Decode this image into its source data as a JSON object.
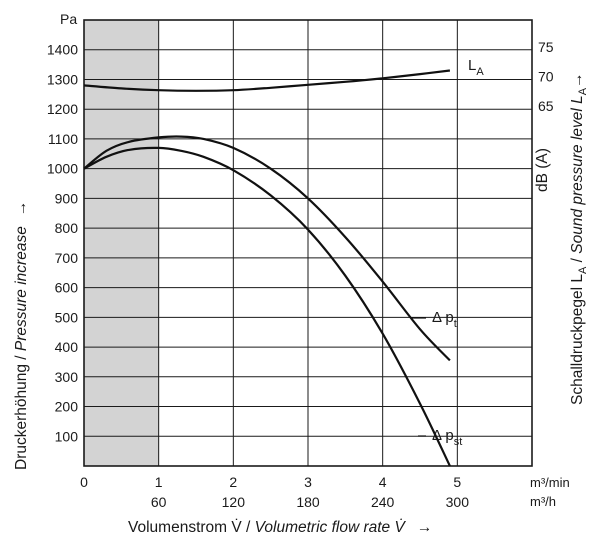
{
  "chart_data": {
    "type": "line",
    "xlabel_de": "Volumenstrom V̇",
    "xlabel_en": "Volumetric flow rate V̇",
    "xlabel_arrow": "→",
    "ylabel_de": "Druckerhöhung",
    "ylabel_en": "Pressure increase",
    "ylabel_arrow": "→",
    "y2label_de": "Schalldruckpegel L",
    "y2label_sub": "A",
    "y2label_en": "Sound pressure level L",
    "y2label_en_sub": "A",
    "y2label_arrow": "→",
    "y2unit": "dB (A)",
    "yunit": "Pa",
    "x_unit_min": "m³/min",
    "x_unit_h": "m³/h",
    "xlim": [
      0,
      6
    ],
    "ylim": [
      0,
      1500
    ],
    "x_ticks_min": [
      {
        "value": 0,
        "label": "0"
      },
      {
        "value": 1,
        "label": "1"
      },
      {
        "value": 2,
        "label": "2"
      },
      {
        "value": 3,
        "label": "3"
      },
      {
        "value": 4,
        "label": "4"
      },
      {
        "value": 5,
        "label": "5"
      }
    ],
    "x_ticks_h": [
      {
        "value": 1,
        "label": "60"
      },
      {
        "value": 2,
        "label": "120"
      },
      {
        "value": 3,
        "label": "180"
      },
      {
        "value": 4,
        "label": "240"
      },
      {
        "value": 5,
        "label": "300"
      }
    ],
    "y_ticks": [
      "100",
      "200",
      "300",
      "400",
      "500",
      "600",
      "700",
      "800",
      "900",
      "1000",
      "1100",
      "1200",
      "1300",
      "1400"
    ],
    "y_tick_values": [
      100,
      200,
      300,
      400,
      500,
      600,
      700,
      800,
      900,
      1000,
      1100,
      1200,
      1300,
      1400
    ],
    "y2_ticks": [
      {
        "value": 65,
        "label": "65"
      },
      {
        "value": 70,
        "label": "70"
      },
      {
        "value": 75,
        "label": "75"
      }
    ],
    "y2_map": {
      "db_a": 65,
      "pa_a": 1210,
      "db_b": 75,
      "pa_b": 1410
    },
    "shaded_region_x": [
      0,
      1
    ],
    "grid": true,
    "series": [
      {
        "name": "Δ p",
        "name_sub": "t",
        "axis": "left",
        "x": [
          0,
          0.3,
          0.6,
          1.0,
          1.3,
          1.6,
          2.0,
          2.5,
          3.0,
          3.5,
          4.0,
          4.5,
          4.9
        ],
        "y": [
          1000,
          1060,
          1090,
          1105,
          1108,
          1100,
          1070,
          1000,
          900,
          770,
          620,
          460,
          355
        ]
      },
      {
        "name": "Δ p",
        "name_sub": "st",
        "axis": "left",
        "x": [
          0,
          0.3,
          0.6,
          1.0,
          1.3,
          1.6,
          2.0,
          2.5,
          3.0,
          3.5,
          4.0,
          4.5,
          4.9
        ],
        "y": [
          1000,
          1040,
          1063,
          1070,
          1060,
          1040,
          995,
          910,
          795,
          640,
          445,
          210,
          0
        ]
      },
      {
        "name": "L",
        "name_sub": "A",
        "axis": "right",
        "x": [
          0,
          0.5,
          1.0,
          1.5,
          2.0,
          2.5,
          3.0,
          3.5,
          4.0,
          4.5,
          4.9
        ],
        "y": [
          68.5,
          68.0,
          67.7,
          67.6,
          67.7,
          68.1,
          68.6,
          69.1,
          69.7,
          70.4,
          71.0
        ]
      }
    ]
  }
}
